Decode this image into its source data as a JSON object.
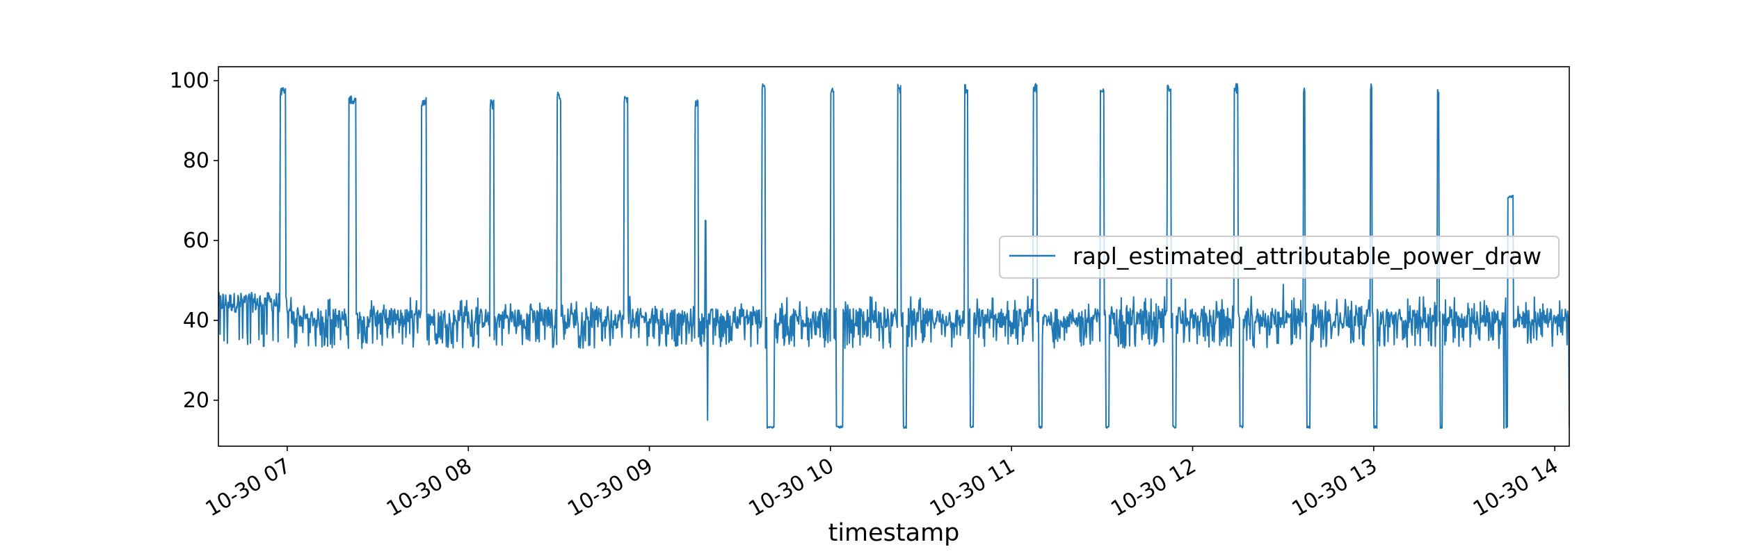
{
  "chart_data": {
    "type": "line",
    "title": "",
    "xlabel": "timestamp",
    "ylabel": "",
    "x_start": "10-30 06:37",
    "x_end": "10-30 14:05",
    "xlim_hours": [
      6.62,
      14.08
    ],
    "ylim": [
      8.5,
      103.5
    ],
    "grid": false,
    "legend_position": "center-right",
    "x_ticks": [
      {
        "label": "10-30 07",
        "hour": 7
      },
      {
        "label": "10-30 08",
        "hour": 8
      },
      {
        "label": "10-30 09",
        "hour": 9
      },
      {
        "label": "10-30 10",
        "hour": 10
      },
      {
        "label": "10-30 11",
        "hour": 11
      },
      {
        "label": "10-30 12",
        "hour": 12
      },
      {
        "label": "10-30 13",
        "hour": 13
      },
      {
        "label": "10-30 14",
        "hour": 14
      }
    ],
    "y_ticks": [
      {
        "label": "20",
        "value": 20
      },
      {
        "label": "40",
        "value": 40
      },
      {
        "label": "60",
        "value": 60
      },
      {
        "label": "80",
        "value": 80
      },
      {
        "label": "100",
        "value": 100
      }
    ],
    "series": [
      {
        "name": "rapl_estimated_attributable_power_draw",
        "color": "#1f77b4",
        "baseline": {
          "mean": 40,
          "noise_low": 33,
          "noise_high": 46
        },
        "peaks_high": [
          {
            "start_hour": 6.96,
            "end_hour": 6.99,
            "value": 97
          },
          {
            "start_hour": 7.34,
            "end_hour": 7.38,
            "value": 95
          },
          {
            "start_hour": 7.74,
            "end_hour": 7.77,
            "value": 95
          },
          {
            "start_hour": 8.12,
            "end_hour": 8.14,
            "value": 94
          },
          {
            "start_hour": 8.49,
            "end_hour": 8.51,
            "value": 96
          },
          {
            "start_hour": 8.86,
            "end_hour": 8.88,
            "value": 95
          },
          {
            "start_hour": 9.25,
            "end_hour": 9.27,
            "value": 94
          },
          {
            "start_hour": 9.62,
            "end_hour": 9.64,
            "value": 98
          },
          {
            "start_hour": 10.0,
            "end_hour": 10.02,
            "value": 97
          },
          {
            "start_hour": 10.37,
            "end_hour": 10.39,
            "value": 98
          },
          {
            "start_hour": 10.74,
            "end_hour": 10.76,
            "value": 98
          },
          {
            "start_hour": 11.12,
            "end_hour": 11.14,
            "value": 98
          },
          {
            "start_hour": 11.49,
            "end_hour": 11.51,
            "value": 98
          },
          {
            "start_hour": 11.86,
            "end_hour": 11.88,
            "value": 98
          },
          {
            "start_hour": 12.23,
            "end_hour": 12.25,
            "value": 98
          },
          {
            "start_hour": 12.61,
            "end_hour": 12.62,
            "value": 98
          },
          {
            "start_hour": 12.98,
            "end_hour": 12.99,
            "value": 98
          },
          {
            "start_hour": 13.35,
            "end_hour": 13.36,
            "value": 97
          }
        ],
        "dips_low": [
          {
            "start_hour": 9.65,
            "end_hour": 9.69,
            "value": 13
          },
          {
            "start_hour": 10.03,
            "end_hour": 10.07,
            "value": 13
          },
          {
            "start_hour": 10.4,
            "end_hour": 10.42,
            "value": 13
          },
          {
            "start_hour": 10.77,
            "end_hour": 10.79,
            "value": 13
          },
          {
            "start_hour": 11.15,
            "end_hour": 11.17,
            "value": 13
          },
          {
            "start_hour": 11.52,
            "end_hour": 11.54,
            "value": 13
          },
          {
            "start_hour": 11.89,
            "end_hour": 11.91,
            "value": 13
          },
          {
            "start_hour": 12.26,
            "end_hour": 12.28,
            "value": 13
          },
          {
            "start_hour": 12.63,
            "end_hour": 12.65,
            "value": 13
          },
          {
            "start_hour": 13.0,
            "end_hour": 13.02,
            "value": 13
          },
          {
            "start_hour": 13.37,
            "end_hour": 13.38,
            "value": 13
          },
          {
            "start_hour": 13.73,
            "end_hour": 13.74,
            "value": 13
          },
          {
            "start_hour": 14.08,
            "end_hour": 14.08,
            "value": 13
          }
        ],
        "plateaus": [
          {
            "start_hour": 13.74,
            "end_hour": 13.77,
            "value": 71
          }
        ],
        "spikes": [
          {
            "hour": 9.31,
            "value": 65
          },
          {
            "hour": 9.32,
            "value": 15
          },
          {
            "hour": 12.62,
            "value": 70
          },
          {
            "hour": 12.99,
            "value": 71
          },
          {
            "hour": 13.36,
            "value": 71
          },
          {
            "hour": 13.37,
            "value": 13
          },
          {
            "hour": 13.72,
            "value": 13
          },
          {
            "hour": 12.5,
            "value": 49
          }
        ]
      }
    ]
  }
}
